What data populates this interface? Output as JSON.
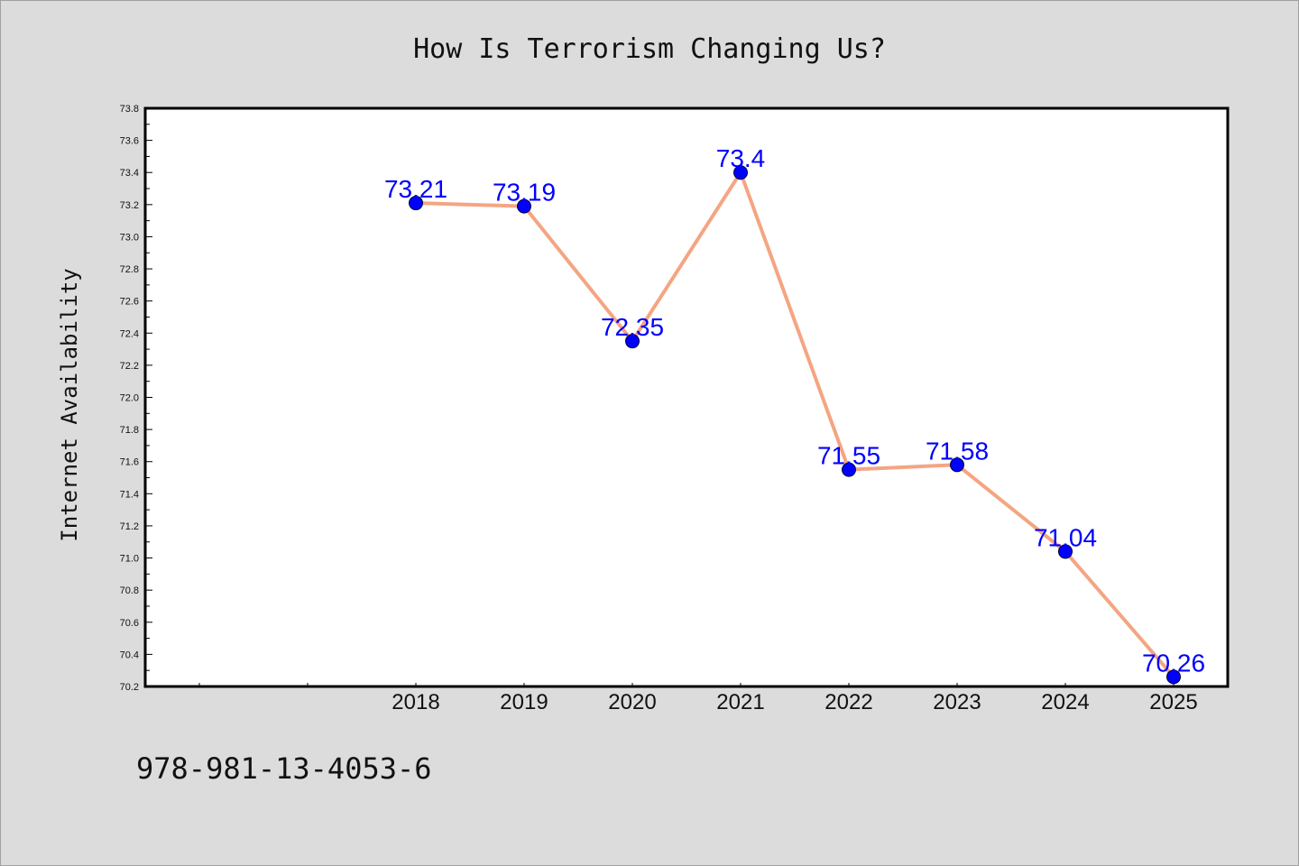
{
  "chart_data": {
    "type": "line",
    "title": "How Is Terrorism Changing Us?",
    "xlabel": "",
    "ylabel": "Internet Availability",
    "categories": [
      "2018",
      "2019",
      "2020",
      "2021",
      "2022",
      "2023",
      "2024",
      "2025"
    ],
    "x_axis_slots_before_data": 2,
    "series": [
      {
        "values": [
          73.21,
          73.19,
          72.35,
          73.4,
          71.55,
          71.58,
          71.04,
          70.26
        ],
        "labels": [
          "73.21",
          "73.19",
          "72.35",
          "73.4",
          "71.55",
          "71.58",
          "71.04",
          "70.26"
        ],
        "line_color": "#f4a582",
        "marker_color": "#0000ff"
      }
    ],
    "ylim": [
      70.2,
      73.8
    ],
    "yticks": [
      "70.2",
      "70.4",
      "70.6",
      "70.8",
      "71.0",
      "71.2",
      "71.4",
      "71.6",
      "71.8",
      "72.0",
      "72.2",
      "72.4",
      "72.6",
      "72.8",
      "73.0",
      "73.2",
      "73.4",
      "73.6",
      "73.8"
    ],
    "grid": false,
    "legend": "none"
  },
  "footnote": "978-981-13-4053-6",
  "colors": {
    "background": "#dcdcdc",
    "plot_area": "#ffffff",
    "axis": "#000000",
    "label": "#0000ff"
  }
}
